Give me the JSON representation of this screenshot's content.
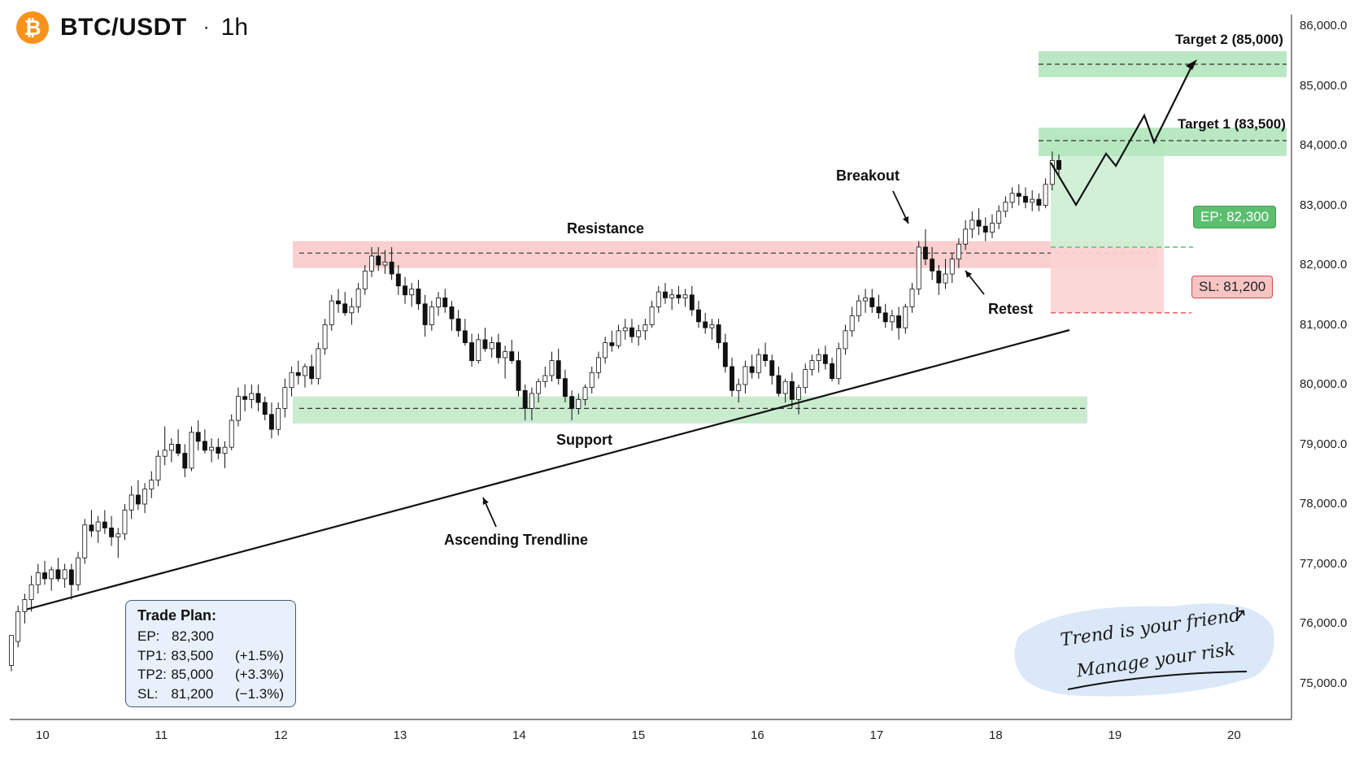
{
  "header": {
    "symbol": "BTC/USDT",
    "separator": "·",
    "timeframe": "1h",
    "coin_glyph": "₿",
    "coin_icon": "bitcoin-icon"
  },
  "colors": {
    "resistance": "#f8c7c7",
    "support": "#bfe8c6",
    "target": "#b3e6bd",
    "bull_candle": "#ffffff",
    "bear_candle": "#111111",
    "ep": "#5cbf70",
    "sl": "#e86060",
    "brand": "#f7931a"
  },
  "annotations": {
    "resistance": "Resistance",
    "support": "Support",
    "trendline": "Ascending Trendline",
    "breakout": "Breakout",
    "retest": "Retest",
    "target1": "Target 1 (83,500)",
    "target2": "Target 2 (85,000)",
    "ep_tag": "EP: 82,300",
    "sl_tag": "SL: 81,200"
  },
  "trade_plan": {
    "title": "Trade Plan:",
    "rows": [
      {
        "k": "EP:",
        "v": "82,300",
        "p": ""
      },
      {
        "k": "TP1:",
        "v": "83,500",
        "p": "(+1.5%)"
      },
      {
        "k": "TP2:",
        "v": "85,000",
        "p": "(+3.3%)"
      },
      {
        "k": "SL:",
        "v": "81,200",
        "p": "(−1.3%)"
      }
    ]
  },
  "note": {
    "line1": "Trend is your friend",
    "line2": "Manage your risk"
  },
  "chart_data": {
    "type": "candlestick",
    "x_ticks": [
      "10",
      "11",
      "12",
      "13",
      "14",
      "15",
      "16",
      "17",
      "18",
      "19",
      "20"
    ],
    "x_range": [
      9.7,
      20.2
    ],
    "y_ticks": [
      "86,000.0",
      "85,000.0",
      "84,000.0",
      "83,000.0",
      "82,000.0",
      "81,000.0",
      "80,000.0",
      "79,000.0",
      "78,000.0",
      "77,000.0",
      "76,000.0",
      "75,000.0"
    ],
    "ylim": [
      74600,
      86000
    ],
    "resistance_zone": {
      "x": [
        12.15,
        20.2
      ],
      "y": [
        81950,
        82400
      ],
      "line": 82200
    },
    "support_zone": {
      "x": [
        12.15,
        17.5
      ],
      "y": [
        79350,
        79800
      ],
      "line": 79600
    },
    "trendline": [
      [
        9.9,
        76200
      ],
      [
        17.35,
        81100
      ]
    ],
    "entry": 82300,
    "stop_loss": 81200,
    "target1": 83500,
    "target2": 85000,
    "projection": [
      [
        18.2,
        83800
      ],
      [
        18.4,
        83150
      ],
      [
        18.65,
        83750
      ],
      [
        18.75,
        83600
      ],
      [
        19.0,
        84650
      ],
      [
        19.1,
        84150
      ],
      [
        19.45,
        85450
      ]
    ],
    "candles": [
      [
        75300,
        75800,
        75200,
        75800
      ],
      [
        75700,
        76300,
        75600,
        76200
      ],
      [
        76200,
        76500,
        76000,
        76400
      ],
      [
        76400,
        76800,
        76200,
        76650
      ],
      [
        76650,
        77000,
        76500,
        76850
      ],
      [
        76850,
        77050,
        76650,
        76750
      ],
      [
        76750,
        76950,
        76550,
        76900
      ],
      [
        76900,
        77100,
        76700,
        76750
      ],
      [
        76750,
        77000,
        76600,
        76900
      ],
      [
        76900,
        77000,
        76400,
        76650
      ],
      [
        76650,
        77200,
        76550,
        77100
      ],
      [
        77100,
        77750,
        77000,
        77650
      ],
      [
        77650,
        77900,
        77450,
        77550
      ],
      [
        77550,
        77800,
        77350,
        77700
      ],
      [
        77700,
        77900,
        77500,
        77600
      ],
      [
        77600,
        77800,
        77300,
        77450
      ],
      [
        77450,
        77600,
        77100,
        77500
      ],
      [
        77500,
        78000,
        77400,
        77900
      ],
      [
        77900,
        78300,
        77750,
        78150
      ],
      [
        78150,
        78400,
        77900,
        78000
      ],
      [
        78000,
        78350,
        77850,
        78250
      ],
      [
        78250,
        78550,
        78100,
        78400
      ],
      [
        78400,
        78900,
        78300,
        78800
      ],
      [
        78800,
        79300,
        78650,
        78900
      ],
      [
        78900,
        79100,
        78700,
        79000
      ],
      [
        79000,
        79250,
        78800,
        78850
      ],
      [
        78850,
        79000,
        78450,
        78600
      ],
      [
        78600,
        79300,
        78550,
        79200
      ],
      [
        79200,
        79400,
        78900,
        79050
      ],
      [
        79050,
        79250,
        78850,
        78900
      ],
      [
        78900,
        79100,
        78700,
        78950
      ],
      [
        78950,
        79100,
        78750,
        78850
      ],
      [
        78850,
        79050,
        78600,
        78950
      ],
      [
        78950,
        79500,
        78900,
        79400
      ],
      [
        79400,
        79950,
        79300,
        79800
      ],
      [
        79800,
        80000,
        79550,
        79750
      ],
      [
        79750,
        80000,
        79600,
        79850
      ],
      [
        79850,
        80000,
        79550,
        79700
      ],
      [
        79700,
        79800,
        79400,
        79500
      ],
      [
        79500,
        79700,
        79100,
        79250
      ],
      [
        79250,
        79700,
        79150,
        79600
      ],
      [
        79600,
        80100,
        79450,
        79950
      ],
      [
        79950,
        80300,
        79800,
        80200
      ],
      [
        80200,
        80400,
        80000,
        80150
      ],
      [
        80150,
        80350,
        79950,
        80300
      ],
      [
        80300,
        80500,
        80000,
        80100
      ],
      [
        80100,
        80700,
        80000,
        80600
      ],
      [
        80600,
        81100,
        80500,
        81000
      ],
      [
        81000,
        81500,
        80900,
        81400
      ],
      [
        81400,
        81600,
        81200,
        81350
      ],
      [
        81350,
        81550,
        81150,
        81200
      ],
      [
        81200,
        81450,
        81000,
        81300
      ],
      [
        81300,
        81700,
        81200,
        81600
      ],
      [
        81600,
        82000,
        81500,
        81900
      ],
      [
        81900,
        82300,
        81800,
        82150
      ],
      [
        82150,
        82300,
        81900,
        82000
      ],
      [
        82000,
        82250,
        81850,
        82050
      ],
      [
        82050,
        82300,
        81750,
        81850
      ],
      [
        81850,
        82000,
        81500,
        81650
      ],
      [
        81650,
        81800,
        81350,
        81500
      ],
      [
        81500,
        81700,
        81300,
        81600
      ],
      [
        81600,
        81750,
        81250,
        81350
      ],
      [
        81350,
        81500,
        80800,
        81000
      ],
      [
        81000,
        81400,
        80900,
        81300
      ],
      [
        81300,
        81550,
        81150,
        81450
      ],
      [
        81450,
        81600,
        81200,
        81300
      ],
      [
        81300,
        81400,
        80900,
        81100
      ],
      [
        81100,
        81250,
        80800,
        80900
      ],
      [
        80900,
        81100,
        80650,
        80700
      ],
      [
        80700,
        80850,
        80300,
        80400
      ],
      [
        80400,
        80850,
        80350,
        80750
      ],
      [
        80750,
        80950,
        80550,
        80600
      ],
      [
        80600,
        80800,
        80450,
        80700
      ],
      [
        80700,
        80850,
        80350,
        80450
      ],
      [
        80450,
        80650,
        80100,
        80550
      ],
      [
        80550,
        80750,
        80350,
        80400
      ],
      [
        80400,
        80550,
        79800,
        79900
      ],
      [
        79900,
        80000,
        79400,
        79600
      ],
      [
        79600,
        79950,
        79400,
        79850
      ],
      [
        79850,
        80100,
        79700,
        80050
      ],
      [
        80050,
        80300,
        79950,
        80150
      ],
      [
        80150,
        80550,
        80050,
        80400
      ],
      [
        80400,
        80600,
        80000,
        80100
      ],
      [
        80100,
        80250,
        79700,
        79800
      ],
      [
        79800,
        79900,
        79400,
        79600
      ],
      [
        79600,
        79850,
        79500,
        79750
      ],
      [
        79750,
        80000,
        79650,
        79950
      ],
      [
        79950,
        80300,
        79850,
        80200
      ],
      [
        80200,
        80550,
        80100,
        80450
      ],
      [
        80450,
        80800,
        80350,
        80700
      ],
      [
        80700,
        80900,
        80550,
        80650
      ],
      [
        80650,
        81000,
        80600,
        80900
      ],
      [
        80900,
        81100,
        80750,
        80950
      ],
      [
        80950,
        81100,
        80700,
        80800
      ],
      [
        80800,
        81000,
        80650,
        80900
      ],
      [
        80900,
        81100,
        80750,
        81000
      ],
      [
        81000,
        81400,
        80950,
        81300
      ],
      [
        81300,
        81650,
        81200,
        81550
      ],
      [
        81550,
        81700,
        81350,
        81450
      ],
      [
        81450,
        81600,
        81250,
        81500
      ],
      [
        81500,
        81650,
        81350,
        81450
      ],
      [
        81450,
        81600,
        81300,
        81500
      ],
      [
        81500,
        81650,
        81150,
        81250
      ],
      [
        81250,
        81400,
        80950,
        81050
      ],
      [
        81050,
        81200,
        80850,
        80950
      ],
      [
        80950,
        81100,
        80750,
        81000
      ],
      [
        81000,
        81100,
        80600,
        80700
      ],
      [
        80700,
        80850,
        80200,
        80300
      ],
      [
        80300,
        80450,
        79800,
        79900
      ],
      [
        79900,
        80100,
        79700,
        80000
      ],
      [
        80000,
        80400,
        79850,
        80300
      ],
      [
        80300,
        80500,
        80100,
        80200
      ],
      [
        80200,
        80600,
        80100,
        80500
      ],
      [
        80500,
        80700,
        80300,
        80400
      ],
      [
        80400,
        80500,
        80000,
        80150
      ],
      [
        80150,
        80300,
        79800,
        79850
      ],
      [
        79850,
        80100,
        79700,
        80050
      ],
      [
        80050,
        80200,
        79600,
        79750
      ],
      [
        79750,
        80000,
        79500,
        79950
      ],
      [
        79950,
        80350,
        79850,
        80250
      ],
      [
        80250,
        80500,
        80150,
        80400
      ],
      [
        80400,
        80600,
        80200,
        80500
      ],
      [
        80500,
        80650,
        80250,
        80350
      ],
      [
        80350,
        80450,
        80050,
        80100
      ],
      [
        80100,
        80700,
        80000,
        80600
      ],
      [
        80600,
        81000,
        80500,
        80900
      ],
      [
        80900,
        81300,
        80800,
        81150
      ],
      [
        81150,
        81500,
        81050,
        81400
      ],
      [
        81400,
        81600,
        81200,
        81450
      ],
      [
        81450,
        81600,
        81200,
        81300
      ],
      [
        81300,
        81500,
        81100,
        81200
      ],
      [
        81200,
        81350,
        80950,
        81050
      ],
      [
        81050,
        81250,
        80900,
        81150
      ],
      [
        81150,
        81300,
        80750,
        80950
      ],
      [
        80950,
        81350,
        80850,
        81300
      ],
      [
        81300,
        81700,
        81200,
        81600
      ],
      [
        81600,
        82400,
        81500,
        82300
      ],
      [
        82300,
        82600,
        82000,
        82100
      ],
      [
        82100,
        82300,
        81750,
        81900
      ],
      [
        81900,
        82000,
        81500,
        81700
      ],
      [
        81700,
        82100,
        81600,
        81850
      ],
      [
        81850,
        82200,
        81700,
        82100
      ],
      [
        82100,
        82450,
        81950,
        82350
      ],
      [
        82350,
        82750,
        82250,
        82600
      ],
      [
        82600,
        82900,
        82450,
        82750
      ],
      [
        82750,
        82950,
        82500,
        82650
      ],
      [
        82650,
        82800,
        82400,
        82550
      ],
      [
        82550,
        82850,
        82450,
        82700
      ],
      [
        82700,
        83000,
        82600,
        82900
      ],
      [
        82900,
        83150,
        82800,
        83050
      ],
      [
        83050,
        83300,
        82950,
        83200
      ],
      [
        83200,
        83350,
        83000,
        83150
      ],
      [
        83150,
        83300,
        82950,
        83050
      ],
      [
        83050,
        83250,
        82900,
        83100
      ],
      [
        83100,
        83200,
        82900,
        83000
      ],
      [
        83000,
        83450,
        82950,
        83350
      ],
      [
        83350,
        83900,
        83250,
        83750
      ],
      [
        83750,
        83850,
        83500,
        83600
      ]
    ]
  }
}
